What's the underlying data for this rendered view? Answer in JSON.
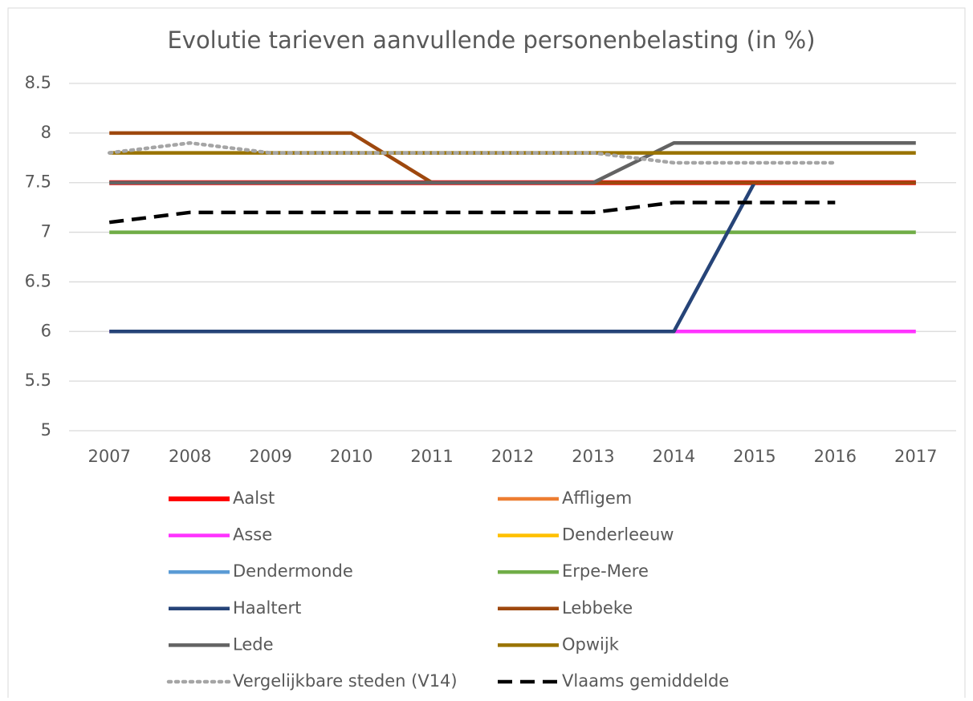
{
  "chart_data": {
    "type": "line",
    "title": "Evolutie tarieven aanvullende personenbelasting (in %)",
    "categories": [
      "2007",
      "2008",
      "2009",
      "2010",
      "2011",
      "2012",
      "2013",
      "2014",
      "2015",
      "2016",
      "2017"
    ],
    "ylim": [
      5,
      8.5
    ],
    "yticks": [
      5,
      5.5,
      6,
      6.5,
      7,
      7.5,
      8,
      8.5
    ],
    "grid": true,
    "series": [
      {
        "name": "Aalst",
        "color": "#ff0000",
        "values": [
          7.5,
          7.5,
          7.5,
          7.5,
          7.5,
          7.5,
          7.5,
          7.5,
          7.5,
          7.5,
          7.5
        ]
      },
      {
        "name": "Affligem",
        "color": "#ed7d31",
        "values": [
          7.5,
          7.5,
          7.5,
          7.5,
          7.5,
          7.5,
          7.5,
          7.5,
          7.5,
          7.5,
          7.5
        ]
      },
      {
        "name": "Asse",
        "color": "#ff33ff",
        "values": [
          6,
          6,
          6,
          6,
          6,
          6,
          6,
          6,
          6,
          6,
          6
        ]
      },
      {
        "name": "Denderleeuw",
        "color": "#ffc000",
        "values": [
          7.5,
          7.5,
          7.5,
          7.5,
          7.5,
          7.5,
          7.5,
          7.5,
          7.5,
          7.5,
          7.5
        ]
      },
      {
        "name": "Dendermonde",
        "color": "#5b9bd5",
        "values": [
          7.5,
          7.5,
          7.5,
          7.5,
          7.5,
          7.5,
          7.5,
          7.5,
          7.5,
          7.5,
          7.5
        ]
      },
      {
        "name": "Erpe-Mere",
        "color": "#70ad47",
        "values": [
          7,
          7,
          7,
          7,
          7,
          7,
          7,
          7,
          7,
          7,
          7
        ]
      },
      {
        "name": "Haaltert",
        "color": "#264478",
        "values": [
          6,
          6,
          6,
          6,
          6,
          6,
          6,
          6,
          7.5,
          7.5,
          7.5
        ]
      },
      {
        "name": "Lebbeke",
        "color": "#9e480e",
        "values": [
          8,
          8,
          8,
          8,
          7.5,
          7.5,
          7.5,
          7.5,
          7.5,
          7.5,
          7.5
        ]
      },
      {
        "name": "Lede",
        "color": "#636363",
        "values": [
          7.5,
          7.5,
          7.5,
          7.5,
          7.5,
          7.5,
          7.5,
          7.9,
          7.9,
          7.9,
          7.9
        ]
      },
      {
        "name": "Opwijk",
        "color": "#997300",
        "values": [
          7.8,
          7.8,
          7.8,
          7.8,
          7.8,
          7.8,
          7.8,
          7.8,
          7.8,
          7.8,
          7.8
        ]
      },
      {
        "name": "Vergelijkbare steden (V14)",
        "color": "#a5a5a5",
        "style": "dotted",
        "values": [
          7.8,
          7.9,
          7.8,
          7.8,
          7.8,
          7.8,
          7.8,
          7.7,
          7.7,
          7.7,
          null
        ]
      },
      {
        "name": "Vlaams gemiddelde",
        "color": "#000000",
        "style": "dashed",
        "values": [
          7.1,
          7.2,
          7.2,
          7.2,
          7.2,
          7.2,
          7.2,
          7.3,
          7.3,
          7.3,
          null
        ]
      }
    ]
  }
}
